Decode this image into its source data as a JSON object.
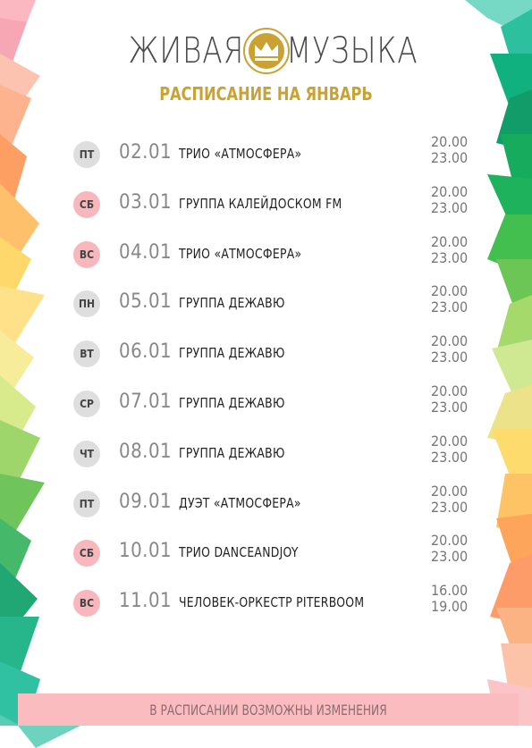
{
  "header": {
    "title_left": "ЖИВАЯ",
    "title_right": "МУЗЫКА",
    "logo": "crown-logo",
    "subtitle": "РАСПИСАНИЕ НА ЯНВАРЬ"
  },
  "schedule": [
    {
      "day": "ПТ",
      "date": "02.01",
      "event": "ТРИО «АТМОСФЕРА»",
      "time1": "20.00",
      "time2": "23.00",
      "weekend": false
    },
    {
      "day": "СБ",
      "date": "03.01",
      "event": "ГРУППА КАЛЕЙДОСКОМ FM",
      "time1": "20.00",
      "time2": "23.00",
      "weekend": true
    },
    {
      "day": "ВС",
      "date": "04.01",
      "event": "ТРИО «АТМОСФЕРА»",
      "time1": "20.00",
      "time2": "23.00",
      "weekend": true
    },
    {
      "day": "ПН",
      "date": "05.01",
      "event": "ГРУППА ДЕЖАВЮ",
      "time1": "20.00",
      "time2": "23.00",
      "weekend": false
    },
    {
      "day": "ВТ",
      "date": "06.01",
      "event": "ГРУППА ДЕЖАВЮ",
      "time1": "20.00",
      "time2": "23.00",
      "weekend": false
    },
    {
      "day": "СР",
      "date": "07.01",
      "event": "ГРУППА ДЕЖАВЮ",
      "time1": "20.00",
      "time2": "23.00",
      "weekend": false
    },
    {
      "day": "ЧТ",
      "date": "08.01",
      "event": "ГРУППА ДЕЖАВЮ",
      "time1": "20.00",
      "time2": "23.00",
      "weekend": false
    },
    {
      "day": "ПТ",
      "date": "09.01",
      "event": "ДУЭТ «АТМОСФЕРА»",
      "time1": "20.00",
      "time2": "23.00",
      "weekend": false
    },
    {
      "day": "СБ",
      "date": "10.01",
      "event": "ТРИО DANCEANDJOY",
      "time1": "20.00",
      "time2": "23.00",
      "weekend": true
    },
    {
      "day": "ВС",
      "date": "11.01",
      "event": "ЧЕЛОВЕК-ОРКЕСТР PITERBOOM",
      "time1": "16.00",
      "time2": "19.00",
      "weekend": true
    }
  ],
  "footer": {
    "note": "В РАСПИСАНИИ ВОЗМОЖНЫ ИЗМЕНЕНИЯ"
  },
  "colors": {
    "gold": "#c9a233",
    "weekday_badge": "#dedede",
    "weekend_badge": "#f8b7bd",
    "footer_bg": "#fbbcc0"
  }
}
